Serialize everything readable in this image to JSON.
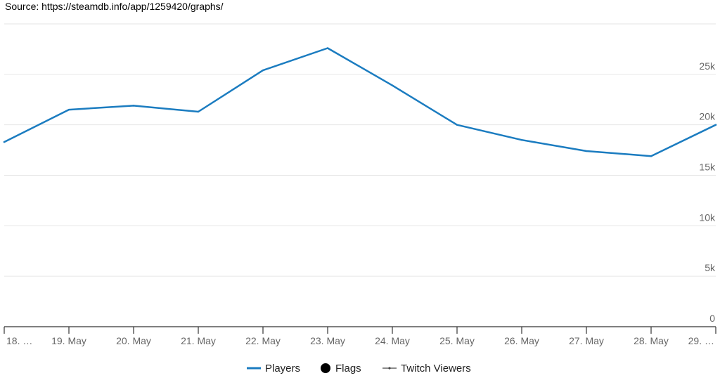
{
  "source_text": "Source: https://steamdb.info/app/1259420/graphs/",
  "colors": {
    "players": "#1b7cc0",
    "flags": "#000000",
    "twitch": "#444444",
    "grid": "#e6e6e6",
    "axis": "#333333"
  },
  "chart_data": {
    "type": "line",
    "categories": [
      "18. …",
      "19. May",
      "20. May",
      "21. May",
      "22. May",
      "23. May",
      "24. May",
      "25. May",
      "26. May",
      "27. May",
      "28. May",
      "29. …"
    ],
    "series": [
      {
        "name": "Players",
        "values": [
          18300,
          21500,
          21900,
          21300,
          25400,
          27600,
          23900,
          20000,
          18500,
          17400,
          16900,
          20000
        ]
      }
    ],
    "y_ticks": [
      "0",
      "5k",
      "10k",
      "15k",
      "20k",
      "25k"
    ],
    "y_tick_values": [
      0,
      5000,
      10000,
      15000,
      20000,
      25000
    ],
    "ylim": [
      0,
      30000
    ],
    "grid": true,
    "legend": [
      {
        "name": "Players",
        "marker": "line"
      },
      {
        "name": "Flags",
        "marker": "circle"
      },
      {
        "name": "Twitch Viewers",
        "marker": "line-dot"
      }
    ],
    "legend_position": "bottom-center"
  }
}
